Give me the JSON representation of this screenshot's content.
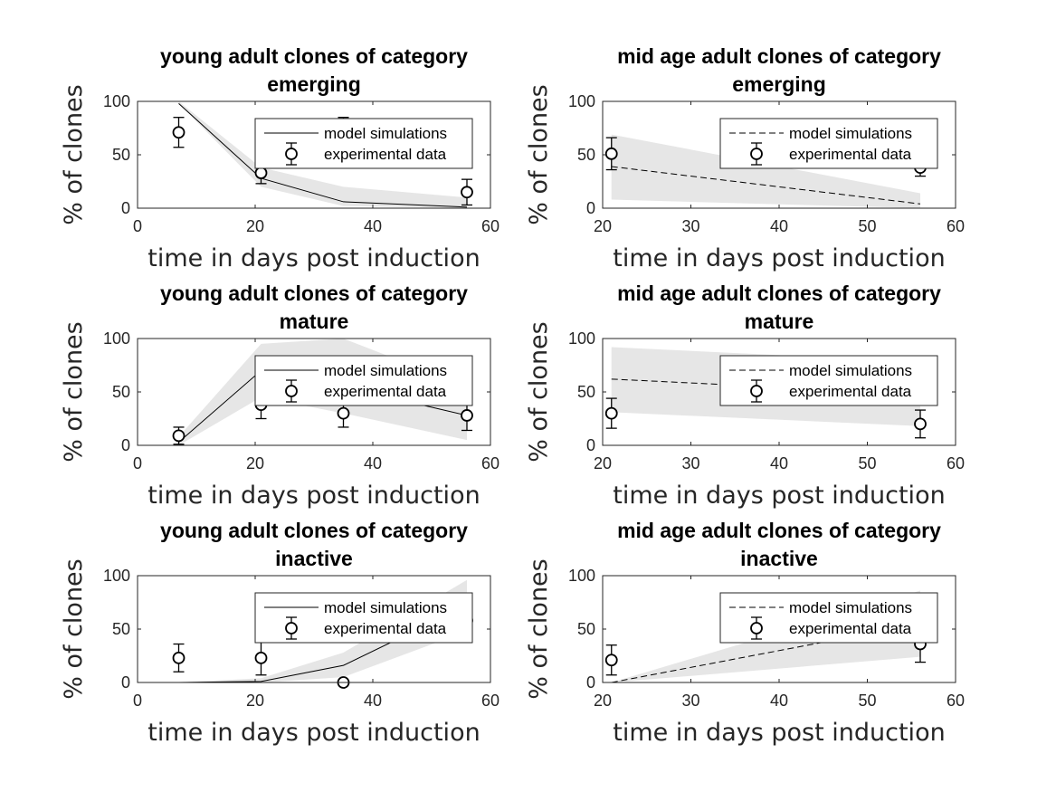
{
  "figure": {
    "background": "#ffffff",
    "band_color": "#e6e6e6"
  },
  "chart_data": [
    {
      "type": "line",
      "title_lines": [
        "young adult clones of category",
        "emerging"
      ],
      "xlabel": "time in days post induction",
      "ylabel": "% of clones",
      "xlim": [
        0,
        60
      ],
      "ylim": [
        0,
        100
      ],
      "xticks": [
        0,
        20,
        40,
        60
      ],
      "yticks": [
        0,
        50,
        100
      ],
      "legend": [
        "model simulations",
        "experimental data"
      ],
      "legend_position": "top-right",
      "line_style": "solid",
      "simulation": {
        "name": "model simulations",
        "x": [
          7,
          21,
          35,
          56
        ],
        "y": [
          98,
          28,
          6,
          1
        ],
        "band_lower": [
          98,
          20,
          2,
          0
        ],
        "band_upper": [
          100,
          38,
          20,
          10
        ]
      },
      "experimental": {
        "name": "experimental data",
        "x": [
          7,
          21,
          35,
          56
        ],
        "y": [
          71,
          33,
          72,
          15
        ],
        "err": [
          14,
          10,
          13,
          12
        ]
      }
    },
    {
      "type": "line",
      "title_lines": [
        "mid age adult clones of category",
        "emerging"
      ],
      "xlabel": "time in days post induction",
      "ylabel": "% of clones",
      "xlim": [
        20,
        60
      ],
      "ylim": [
        0,
        100
      ],
      "xticks": [
        20,
        30,
        40,
        50,
        60
      ],
      "yticks": [
        0,
        50,
        100
      ],
      "legend": [
        "model simulations",
        "experimental data"
      ],
      "legend_position": "top-right",
      "line_style": "dashed",
      "simulation": {
        "name": "model simulations",
        "x": [
          21,
          56
        ],
        "y": [
          39,
          4
        ],
        "band_lower": [
          8,
          0
        ],
        "band_upper": [
          69,
          14
        ]
      },
      "experimental": {
        "name": "experimental data",
        "x": [
          21,
          56
        ],
        "y": [
          51,
          38
        ],
        "err": [
          15,
          8
        ]
      }
    },
    {
      "type": "line",
      "title_lines": [
        "young adult clones of category",
        "mature"
      ],
      "xlabel": "time in days post induction",
      "ylabel": "% of clones",
      "xlim": [
        0,
        60
      ],
      "ylim": [
        0,
        100
      ],
      "xticks": [
        0,
        20,
        40,
        60
      ],
      "yticks": [
        0,
        50,
        100
      ],
      "legend": [
        "model simulations",
        "experimental data"
      ],
      "legend_position": "top-right",
      "line_style": "solid",
      "simulation": {
        "name": "model simulations",
        "x": [
          7,
          21,
          35,
          56
        ],
        "y": [
          3,
          70,
          55,
          28
        ],
        "band_lower": [
          0,
          45,
          30,
          5
        ],
        "band_upper": [
          8,
          95,
          100,
          55
        ]
      },
      "experimental": {
        "name": "experimental data",
        "x": [
          7,
          21,
          35,
          56
        ],
        "y": [
          9,
          38,
          30,
          28
        ],
        "err": [
          8,
          13,
          13,
          14
        ]
      }
    },
    {
      "type": "line",
      "title_lines": [
        "mid age adult clones of category",
        "mature"
      ],
      "xlabel": "time in days post induction",
      "ylabel": "% of clones",
      "xlim": [
        20,
        60
      ],
      "ylim": [
        0,
        100
      ],
      "xticks": [
        20,
        30,
        40,
        50,
        60
      ],
      "yticks": [
        0,
        50,
        100
      ],
      "legend": [
        "model simulations",
        "experimental data"
      ],
      "legend_position": "top-right",
      "line_style": "dashed",
      "simulation": {
        "name": "model simulations",
        "x": [
          21,
          56
        ],
        "y": [
          62,
          48
        ],
        "band_lower": [
          31,
          18
        ],
        "band_upper": [
          92,
          78
        ]
      },
      "experimental": {
        "name": "experimental data",
        "x": [
          21,
          56
        ],
        "y": [
          30,
          20
        ],
        "err": [
          14,
          13
        ]
      }
    },
    {
      "type": "line",
      "title_lines": [
        "young adult clones of category",
        "inactive"
      ],
      "xlabel": "time in days post induction",
      "ylabel": "% of clones",
      "xlim": [
        0,
        60
      ],
      "ylim": [
        0,
        100
      ],
      "xticks": [
        0,
        20,
        40,
        60
      ],
      "yticks": [
        0,
        50,
        100
      ],
      "legend": [
        "model simulations",
        "experimental data"
      ],
      "legend_position": "top-right",
      "line_style": "solid",
      "simulation": {
        "name": "model simulations",
        "x": [
          7,
          21,
          35,
          56
        ],
        "y": [
          0,
          1,
          16,
          72
        ],
        "band_lower": [
          0,
          0,
          5,
          48
        ],
        "band_upper": [
          0,
          4,
          28,
          96
        ]
      },
      "experimental": {
        "name": "experimental data",
        "x": [
          7,
          21,
          35,
          56
        ],
        "y": [
          23,
          23,
          0,
          58
        ],
        "err": [
          13,
          16,
          0,
          12
        ]
      }
    },
    {
      "type": "line",
      "title_lines": [
        "mid age adult clones of category",
        "inactive"
      ],
      "xlabel": "time in days post induction",
      "ylabel": "% of clones",
      "xlim": [
        20,
        60
      ],
      "ylim": [
        0,
        100
      ],
      "xticks": [
        20,
        30,
        40,
        50,
        60
      ],
      "yticks": [
        0,
        50,
        100
      ],
      "legend": [
        "model simulations",
        "experimental data"
      ],
      "legend_position": "top-right",
      "line_style": "dashed",
      "simulation": {
        "name": "model simulations",
        "x": [
          21,
          56
        ],
        "y": [
          0,
          55
        ],
        "band_lower": [
          0,
          24
        ],
        "band_upper": [
          0,
          86
        ]
      },
      "experimental": {
        "name": "experimental data",
        "x": [
          21,
          56
        ],
        "y": [
          21,
          36
        ],
        "err": [
          14,
          17
        ]
      }
    }
  ]
}
